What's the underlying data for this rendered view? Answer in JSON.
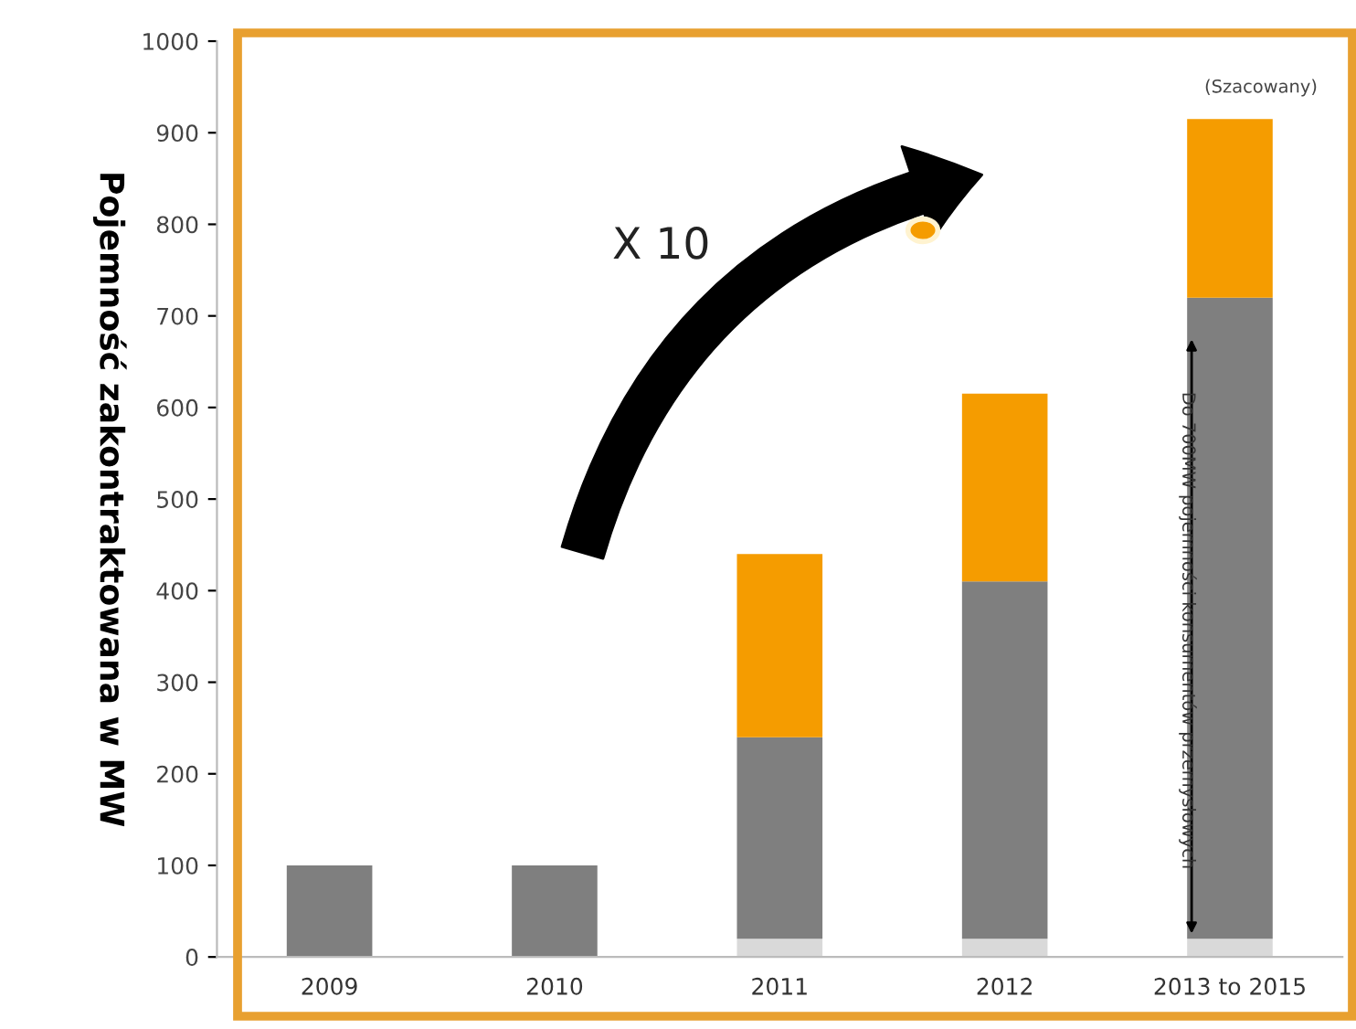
{
  "chart_data": {
    "type": "bar",
    "stacked": true,
    "ylabel": "Pojemność zakontraktowana w MW",
    "categories": [
      "2009",
      "2010",
      "2011",
      "2012",
      "2013 to 2015"
    ],
    "series": [
      {
        "color": "#d9d9d9",
        "values": [
          null,
          null,
          20,
          20,
          20
        ]
      },
      {
        "color": "#7f7f7f",
        "values": [
          100,
          100,
          220,
          390,
          700
        ]
      },
      {
        "color": "#f59c00",
        "values": [
          null,
          null,
          200,
          205,
          195
        ]
      }
    ],
    "ylim": [
      0,
      1000
    ],
    "yticks": [
      0,
      100,
      200,
      300,
      400,
      500,
      600,
      700,
      800,
      900,
      1000
    ],
    "annotations": [
      "X 10",
      "(Szacowany)",
      "Do 700MW pojemności konsumentów przemysłowych"
    ]
  }
}
